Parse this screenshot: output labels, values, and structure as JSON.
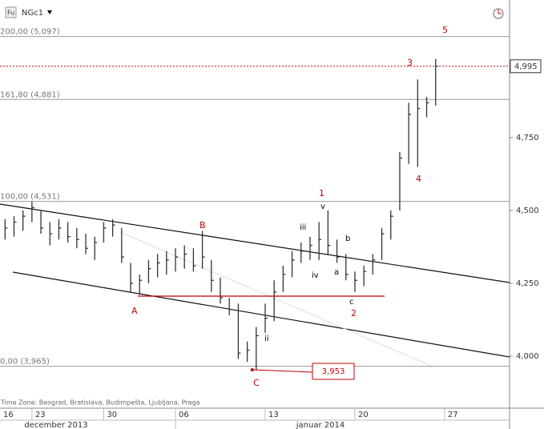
{
  "header": {
    "symbol": "NGc1",
    "icon": "Fu"
  },
  "footer": {
    "timezone": "Time Zone: Beograd, Bratislava, Budimpešta, Ljubljana, Praga"
  },
  "chart_data": {
    "type": "ohlc",
    "x": [
      -1.5,
      -1,
      -0.5,
      0,
      0.5,
      1,
      1.5,
      2,
      2.5,
      3,
      3.5,
      4,
      4.5,
      5,
      5.5,
      6,
      6.5,
      7,
      7.5,
      8,
      8.5,
      9,
      9.5,
      10,
      10.5,
      11,
      11.5,
      12,
      12.5,
      13,
      13.5,
      14,
      14.5,
      15,
      15.5,
      16,
      16.5,
      17,
      17.5,
      18,
      18.5,
      19,
      19.5,
      20,
      20.5,
      21,
      21.5,
      22,
      22.5
    ],
    "high": [
      4.47,
      4.48,
      4.5,
      4.53,
      4.5,
      4.46,
      4.47,
      4.46,
      4.44,
      4.42,
      4.41,
      4.46,
      4.47,
      4.44,
      4.32,
      4.28,
      4.33,
      4.35,
      4.36,
      4.37,
      4.38,
      4.37,
      4.43,
      4.33,
      4.27,
      4.2,
      4.18,
      4.05,
      4.1,
      4.18,
      4.26,
      4.31,
      4.36,
      4.39,
      4.41,
      4.46,
      4.5,
      4.4,
      4.35,
      4.29,
      4.31,
      4.35,
      4.44,
      4.5,
      4.7,
      4.87,
      4.95,
      4.89,
      5.02
    ],
    "low": [
      4.4,
      4.41,
      4.43,
      4.46,
      4.42,
      4.38,
      4.4,
      4.39,
      4.37,
      4.35,
      4.33,
      4.39,
      4.41,
      4.32,
      4.22,
      4.21,
      4.25,
      4.27,
      4.28,
      4.29,
      4.3,
      4.29,
      4.3,
      4.22,
      4.18,
      4.14,
      3.99,
      3.98,
      3.953,
      4.08,
      4.12,
      4.22,
      4.27,
      4.32,
      4.33,
      4.33,
      4.35,
      4.32,
      4.26,
      4.22,
      4.24,
      4.28,
      4.33,
      4.4,
      4.5,
      4.66,
      4.65,
      4.82,
      4.86
    ],
    "close": [
      4.44,
      4.46,
      4.48,
      4.51,
      4.44,
      4.42,
      4.44,
      4.41,
      4.4,
      4.37,
      4.39,
      4.44,
      4.45,
      4.34,
      4.25,
      4.26,
      4.3,
      4.32,
      4.33,
      4.34,
      4.35,
      4.31,
      4.34,
      4.26,
      4.2,
      4.16,
      4.01,
      4.02,
      4.07,
      4.13,
      4.22,
      4.28,
      4.33,
      4.36,
      4.38,
      4.4,
      4.38,
      4.34,
      4.28,
      4.26,
      4.29,
      4.33,
      4.42,
      4.48,
      4.68,
      4.83,
      4.85,
      4.87,
      4.995
    ],
    "color": "#333333",
    "xlim": [
      -1.78,
      26.62
    ],
    "xticks": [
      {
        "value": -5,
        "label": "16"
      },
      {
        "value": 0,
        "label": "23"
      },
      {
        "value": 4,
        "label": "30"
      },
      {
        "value": 8,
        "label": "06"
      },
      {
        "value": 13,
        "label": "13"
      },
      {
        "value": 18,
        "label": "20"
      },
      {
        "value": 23,
        "label": "27"
      }
    ],
    "months": [
      "december 2013",
      "januar 2014"
    ],
    "ylim": [
      3.821,
      5.2225
    ],
    "yticks": [
      {
        "value": 4,
        "label": "4,000"
      },
      {
        "value": 4.25,
        "label": "4,250"
      },
      {
        "value": 4.5,
        "label": "4,500"
      },
      {
        "value": 4.75,
        "label": "4,750"
      }
    ],
    "fib_levels": [
      {
        "label": "200,00 (5,097)",
        "value": 5.097
      },
      {
        "label": "161,80 (4,881)",
        "value": 4.881
      },
      {
        "label": "100,00 (4,531)",
        "value": 4.531
      },
      {
        "label": "0,00 (3,965)",
        "value": 3.965
      }
    ],
    "last_price": {
      "value": 4.995,
      "label": "4,995"
    },
    "low_marker": {
      "value": 3.953,
      "label": "3,953"
    },
    "wave_labels": [
      "A",
      "B",
      "C",
      "1",
      "2",
      "3",
      "4",
      "5",
      "ii",
      "iii",
      "iv",
      "v",
      "a",
      "b",
      "c"
    ]
  }
}
